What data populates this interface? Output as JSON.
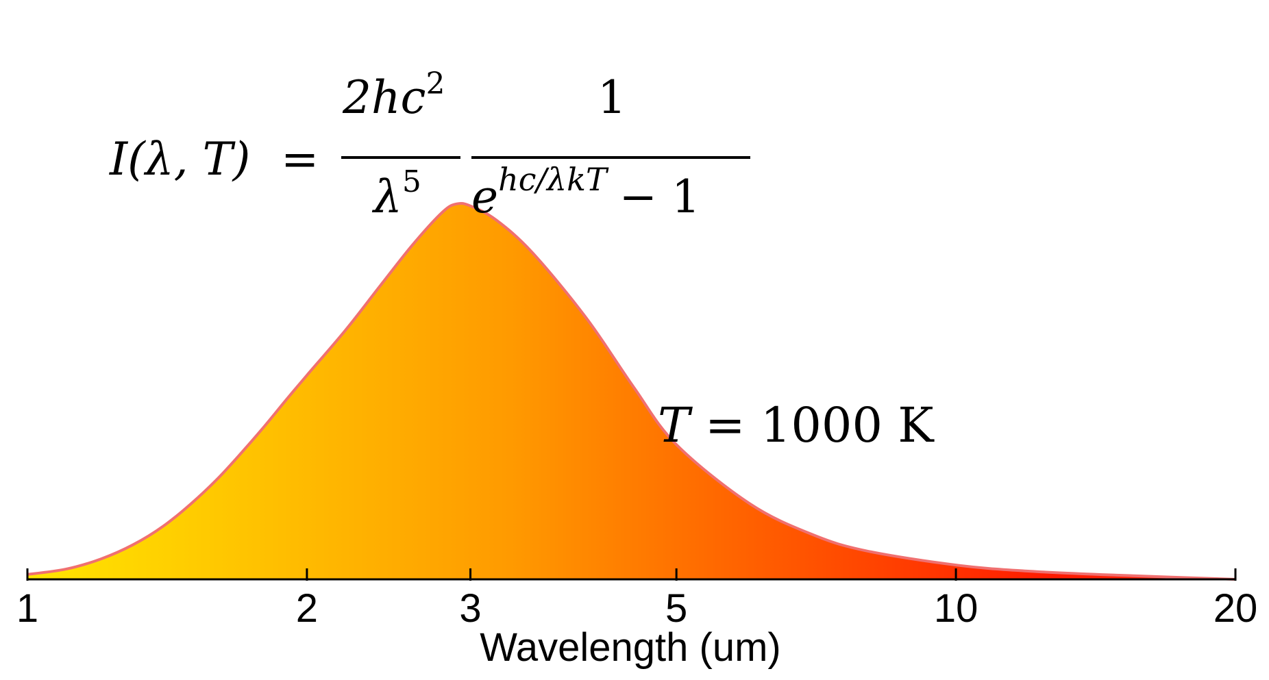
{
  "chart_data": {
    "type": "area",
    "title": "",
    "xlabel": "Wavelength (um)",
    "ylabel": "",
    "x_scale": "log",
    "xlim": [
      1,
      20
    ],
    "x_ticks": [
      {
        "value": 1,
        "label": "1"
      },
      {
        "value": 2,
        "label": "2"
      },
      {
        "value": 3,
        "label": "3"
      },
      {
        "value": 5,
        "label": "5"
      },
      {
        "value": 10,
        "label": "10"
      },
      {
        "value": 20,
        "label": "20"
      }
    ],
    "ylim": [
      0,
      1.0
    ],
    "grid": false,
    "y_axis_visible": false,
    "series": [
      {
        "x": [
          1.0,
          1.1,
          1.2,
          1.3,
          1.4,
          1.5,
          1.6,
          1.7,
          1.8,
          1.9,
          2.0,
          2.2,
          2.4,
          2.6,
          2.8,
          2.9,
          3.0,
          3.2,
          3.5,
          4.0,
          4.5,
          5.0,
          6.0,
          7.0,
          8.0,
          10.0,
          12.0,
          15.0,
          20.0
        ],
        "values": [
          0.012,
          0.025,
          0.05,
          0.085,
          0.13,
          0.185,
          0.245,
          0.31,
          0.375,
          0.44,
          0.5,
          0.61,
          0.72,
          0.82,
          0.9,
          0.92,
          0.915,
          0.88,
          0.8,
          0.64,
          0.47,
          0.33,
          0.185,
          0.11,
          0.07,
          0.035,
          0.02,
          0.01,
          0.0
        ]
      }
    ],
    "gradient_colors": [
      "#ffe600",
      "#ff9a00",
      "#ff5a00",
      "#ff1a00",
      "#ff2a10"
    ],
    "curve_color": "#f07070",
    "formula": {
      "lhs": "I(λ, T)",
      "equals": "=",
      "frac1_num": "2hc",
      "frac1_num_sup": "2",
      "frac1_den": "λ",
      "frac1_den_sup": "5",
      "frac2_num": "1",
      "frac2_den_base": "e",
      "frac2_den_exp": "hc/λkT",
      "frac2_den_tail": "− 1"
    },
    "annotation": "T = 1000 K",
    "annotation_italic": "T",
    "annotation_rest": " = 1000 K"
  }
}
